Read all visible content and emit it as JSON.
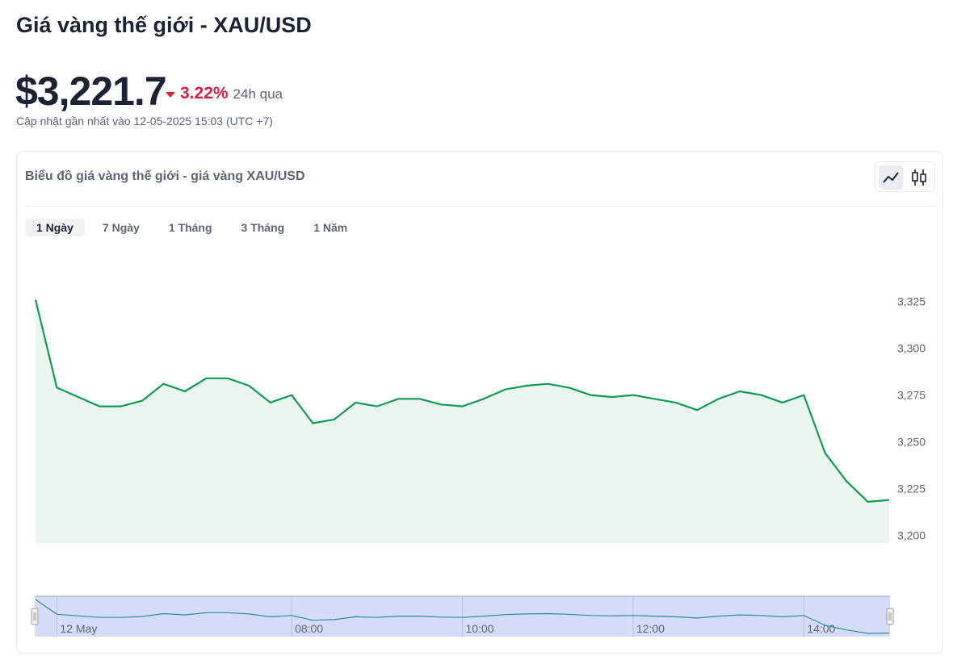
{
  "header": {
    "title": "Giá vàng thế giới - XAU/USD",
    "price": "$3,221.7",
    "change": "3.22%",
    "change_period": "24h qua",
    "updated": "Cập nhật gần nhất vào 12-05-2025 15:03 (UTC +7)"
  },
  "tabs": [
    "1 Ngày",
    "7 Ngày",
    "1 Tháng",
    "3 Tháng",
    "1 Năm"
  ],
  "active_tab": 0,
  "chart_data": {
    "type": "area",
    "title": "Biểu đồ giá vàng thế giới - giá vàng XAU/USD",
    "x": [
      5,
      5.25,
      5.5,
      5.75,
      6,
      6.25,
      6.5,
      6.75,
      7,
      7.25,
      7.5,
      7.75,
      8,
      8.25,
      8.5,
      8.75,
      9,
      9.25,
      9.5,
      9.75,
      10,
      10.25,
      10.5,
      10.75,
      11,
      11.25,
      11.5,
      11.75,
      12,
      12.25,
      12.5,
      12.75,
      13,
      13.25,
      13.5,
      13.75,
      14,
      14.25,
      14.5,
      14.75,
      15
    ],
    "values": [
      3326,
      3279,
      3274,
      3269,
      3269,
      3272,
      3281,
      3277,
      3284,
      3284,
      3280,
      3271,
      3275,
      3260,
      3262,
      3271,
      3269,
      3273,
      3273,
      3270,
      3269,
      3273,
      3278,
      3280,
      3281,
      3279,
      3275,
      3274,
      3275,
      3273,
      3271,
      3267,
      3273,
      3277,
      3275,
      3271,
      3275,
      3244,
      3229,
      3218,
      3219
    ],
    "color": "#129b55",
    "fill": "#eaf5ef",
    "xlim": [
      5,
      15
    ],
    "ylim": [
      3196,
      3330
    ],
    "yticks": [
      {
        "value": 3200,
        "label": "3,200"
      },
      {
        "value": 3225,
        "label": "3,225"
      },
      {
        "value": 3250,
        "label": "3,250"
      },
      {
        "value": 3275,
        "label": "3,275"
      },
      {
        "value": 3300,
        "label": "3,300"
      },
      {
        "value": 3325,
        "label": "3,325"
      }
    ],
    "navigator": {
      "color": "#2b8f9a",
      "xticks": [
        {
          "value": 5.25,
          "label": "12 May"
        },
        {
          "value": 8,
          "label": "08:00"
        },
        {
          "value": 10,
          "label": "10:00"
        },
        {
          "value": 12,
          "label": "12:00"
        },
        {
          "value": 14,
          "label": "14:00"
        }
      ]
    }
  }
}
